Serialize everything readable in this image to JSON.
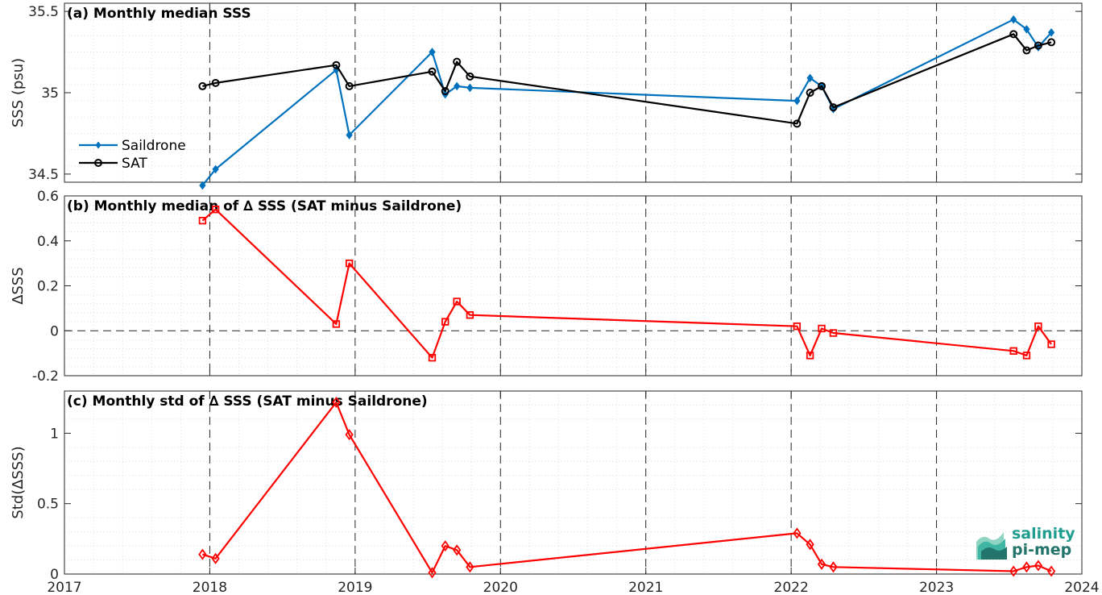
{
  "chart_data": [
    {
      "type": "line",
      "title": "(a) Monthly median SSS",
      "ylabel": "SSS (psu)",
      "xlabel": "",
      "xlim": [
        2017,
        2024
      ],
      "ylim": [
        34.45,
        35.55
      ],
      "yticks": [
        34.5,
        35,
        35.5
      ],
      "ytick_labels": [
        "34.5",
        "35",
        "35.5"
      ],
      "grid": true,
      "legend": "left",
      "series": [
        {
          "name": "Saildrone",
          "color": "#0072BD",
          "marker": "diamond-filled",
          "x": [
            2017.95,
            2018.04,
            2018.87,
            2018.96,
            2019.53,
            2019.62,
            2019.7,
            2019.79,
            2022.04,
            2022.13,
            2022.21,
            2022.29,
            2023.53,
            2023.62,
            2023.7,
            2023.79
          ],
          "values": [
            34.43,
            34.53,
            35.14,
            34.74,
            35.25,
            34.99,
            35.04,
            35.03,
            34.95,
            35.09,
            35.04,
            34.9,
            35.45,
            35.39,
            35.28,
            35.37
          ]
        },
        {
          "name": "SAT",
          "color": "#000000",
          "marker": "circle-open",
          "x": [
            2017.95,
            2018.04,
            2018.87,
            2018.96,
            2019.53,
            2019.62,
            2019.7,
            2019.79,
            2022.04,
            2022.13,
            2022.21,
            2022.29,
            2023.53,
            2023.62,
            2023.7,
            2023.79
          ],
          "values": [
            35.04,
            35.06,
            35.17,
            35.04,
            35.13,
            35.01,
            35.19,
            35.1,
            34.81,
            35.0,
            35.04,
            34.91,
            35.36,
            35.26,
            35.29,
            35.31
          ]
        }
      ]
    },
    {
      "type": "line",
      "title": "(b) Monthly median of ∆ SSS (SAT minus Saildrone)",
      "ylabel": "∆SSS",
      "xlabel": "",
      "xlim": [
        2017,
        2024
      ],
      "ylim": [
        -0.2,
        0.6
      ],
      "yticks": [
        -0.2,
        0,
        0.2,
        0.4,
        0.6
      ],
      "ytick_labels": [
        "-0.2",
        "0",
        "0.2",
        "0.4",
        "0.6"
      ],
      "grid": true,
      "zero_line": true,
      "series": [
        {
          "name": "",
          "color": "#FF0000",
          "marker": "square-open",
          "x": [
            2017.95,
            2018.04,
            2018.87,
            2018.96,
            2019.53,
            2019.62,
            2019.7,
            2019.79,
            2022.04,
            2022.13,
            2022.21,
            2022.29,
            2023.53,
            2023.62,
            2023.7,
            2023.79
          ],
          "values": [
            0.49,
            0.54,
            0.03,
            0.3,
            -0.12,
            0.04,
            0.13,
            0.07,
            0.02,
            -0.11,
            0.01,
            -0.01,
            -0.09,
            -0.11,
            0.02,
            -0.06
          ]
        }
      ]
    },
    {
      "type": "line",
      "title": "(c) Monthly std of ∆ SSS (SAT minus Saildrone)",
      "ylabel": "Std(∆SSS)",
      "xlabel": "",
      "xlim": [
        2017,
        2024
      ],
      "ylim": [
        0,
        1.3
      ],
      "yticks": [
        0,
        0.5,
        1
      ],
      "ytick_labels": [
        "0",
        "0.5",
        "1"
      ],
      "xticks": [
        2017,
        2018,
        2019,
        2020,
        2021,
        2022,
        2023,
        2024
      ],
      "xtick_labels": [
        "2017",
        "2018",
        "2019",
        "2020",
        "2021",
        "2022",
        "2023",
        "2024"
      ],
      "grid": true,
      "series": [
        {
          "name": "",
          "color": "#FF0000",
          "marker": "diamond-open",
          "x": [
            2017.95,
            2018.04,
            2018.87,
            2018.96,
            2019.53,
            2019.62,
            2019.7,
            2019.79,
            2022.04,
            2022.13,
            2022.21,
            2022.29,
            2023.53,
            2023.62,
            2023.7,
            2023.79
          ],
          "values": [
            0.14,
            0.11,
            1.22,
            0.99,
            0.01,
            0.2,
            0.17,
            0.05,
            0.29,
            0.21,
            0.07,
            0.05,
            0.02,
            0.05,
            0.06,
            0.02
          ]
        }
      ]
    }
  ],
  "logo": {
    "line1": "salinity",
    "line2": "pi-mep",
    "colors": [
      "#1f9e8f",
      "#23746b",
      "#8fd3c2"
    ]
  }
}
